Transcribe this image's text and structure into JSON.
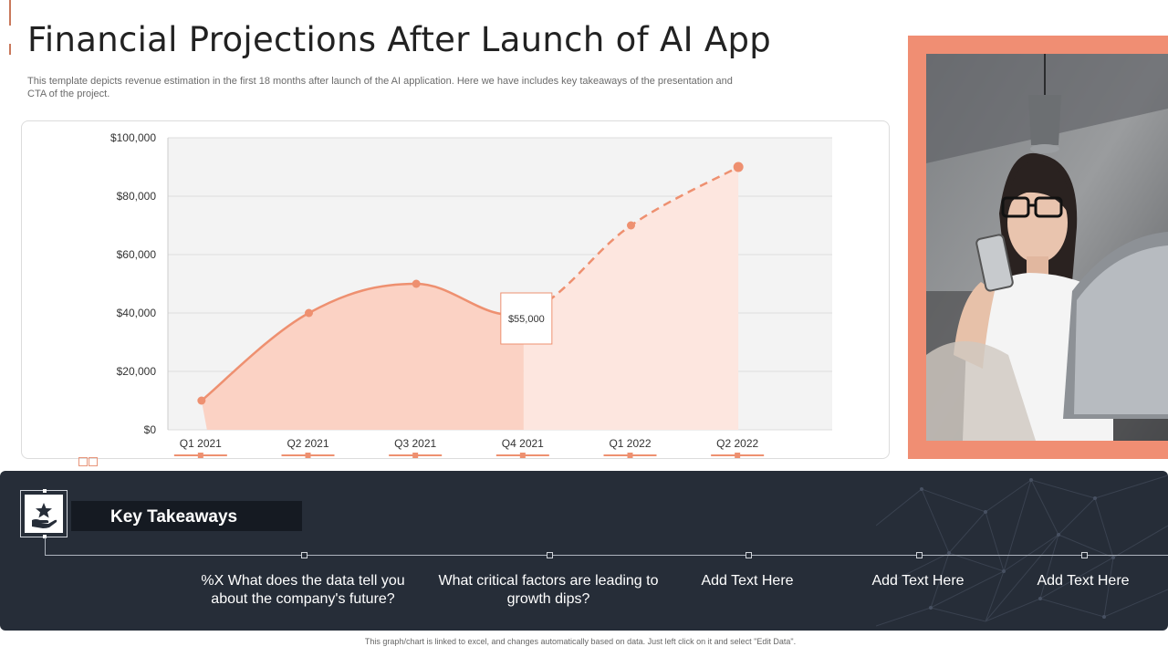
{
  "slide": {
    "title": "Financial Projections After Launch of AI App",
    "subtitle": "This template depicts revenue estimation in the first 18 months after launch of the AI  application. Here we have includes key takeaways of the presentation and CTA of the project.",
    "footnote": "This graph/chart is linked to excel, and changes automatically based on data. Just left click on it and select \"Edit Data\"."
  },
  "chart_data": {
    "type": "area",
    "title": "",
    "xlabel": "",
    "ylabel": "",
    "categories": [
      "Q1 2021",
      "Q2 2021",
      "Q3 2021",
      "Q4 2021",
      "Q1 2022",
      "Q2 2022"
    ],
    "series": [
      {
        "values": [
          10000,
          40000,
          50000,
          40000,
          70000,
          90000
        ]
      }
    ],
    "actual_through_index": 3,
    "projection_style": "dashed",
    "y_ticks": [
      "$0",
      "$20,000",
      "$40,000",
      "$60,000",
      "$80,000",
      "$100,000"
    ],
    "ylim": [
      0,
      100000
    ],
    "callout": {
      "label": "$55,000"
    },
    "grid": true,
    "colors": {
      "line": "#ee9070",
      "area_actual": "#fbd2c4",
      "area_projected": "#fde6df",
      "plot_background": "#f3f3f3"
    }
  },
  "photo": {
    "icon": "woman-with-phone-and-laptop-photo",
    "frame_color": "#f08e73"
  },
  "takeaways": {
    "heading": "Key Takeaways",
    "icon": "hand-holding-star-icon",
    "items": [
      {
        "text": "%X What does the data tell you about the company's future?"
      },
      {
        "text": "What critical factors are leading to growth dips?"
      },
      {
        "text": "Add Text Here"
      },
      {
        "text": "Add Text Here"
      },
      {
        "text": "Add Text Here"
      }
    ]
  }
}
